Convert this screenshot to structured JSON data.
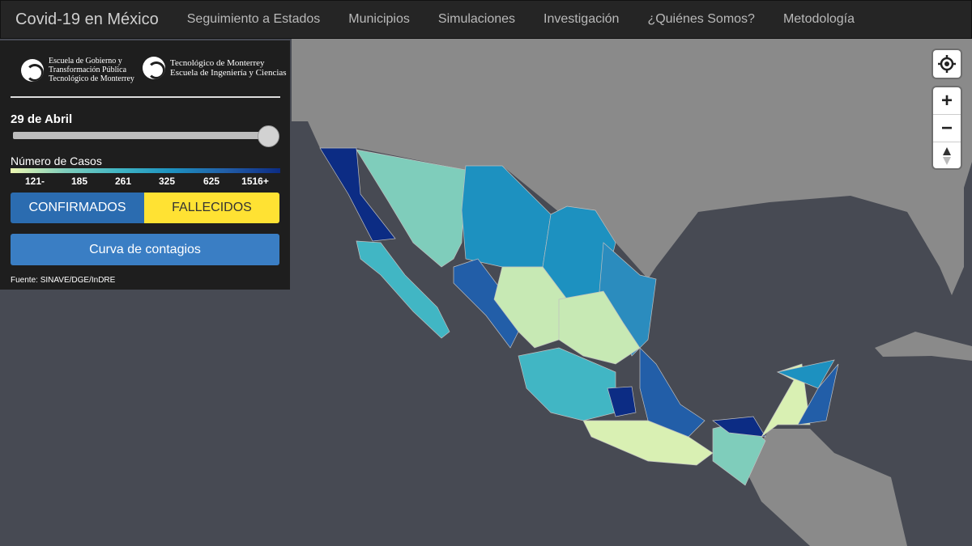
{
  "nav": {
    "brand": "Covid-19 en México",
    "links": [
      "Seguimiento a Estados",
      "Municipios",
      "Simulaciones",
      "Investigación",
      "¿Quiénes Somos?",
      "Metodología"
    ]
  },
  "panel": {
    "logo_left": [
      "Escuela de Gobierno y",
      "Transformación Pública",
      "Tecnológico de Monterrey"
    ],
    "logo_right": [
      "Tecnológico de Monterrey",
      "Escuela de Ingeniería y Ciencias"
    ],
    "date_label": "29 de Abril",
    "legend": {
      "title": "Número de Casos",
      "labels": [
        "121-",
        "185",
        "261",
        "325",
        "625",
        "1516+"
      ]
    },
    "buttons": {
      "confirmed": "CONFIRMADOS",
      "deaths": "FALLECIDOS",
      "curve": "Curva de contagios"
    },
    "source": "Fuente: SINAVE/DGE/InDRE"
  },
  "controls": {
    "zoom_in": "+",
    "zoom_out": "−"
  }
}
